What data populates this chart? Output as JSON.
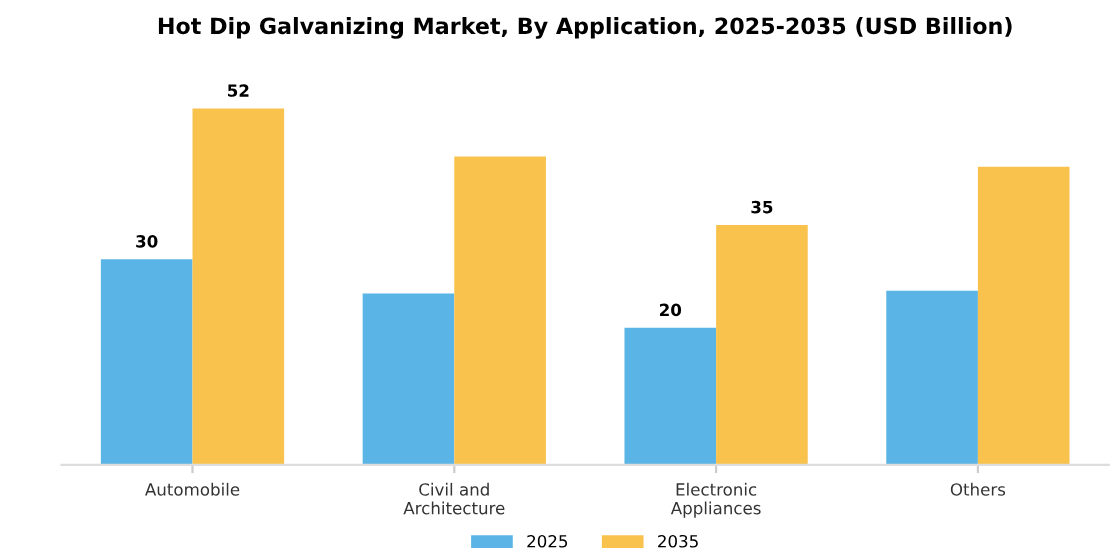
{
  "chart_data": {
    "type": "bar",
    "title": "Hot Dip Galvanizing Market, By Application, 2025-2035 (USD Billion)",
    "categories": [
      "Automobile",
      "Civil and\nArchitecture",
      "Electronic\nAppliances",
      "Others"
    ],
    "series": [
      {
        "name": "2025",
        "color": "#5ab4e5",
        "values": [
          30,
          25,
          20,
          25.4
        ],
        "value_labels": [
          "30",
          null,
          "20",
          null
        ]
      },
      {
        "name": "2035",
        "color": "#f9c24d",
        "values": [
          52,
          45,
          35,
          43.5
        ],
        "value_labels": [
          "52",
          null,
          "35",
          null
        ]
      }
    ],
    "legend": "bottom",
    "grid": false,
    "tick_labels": "x"
  }
}
